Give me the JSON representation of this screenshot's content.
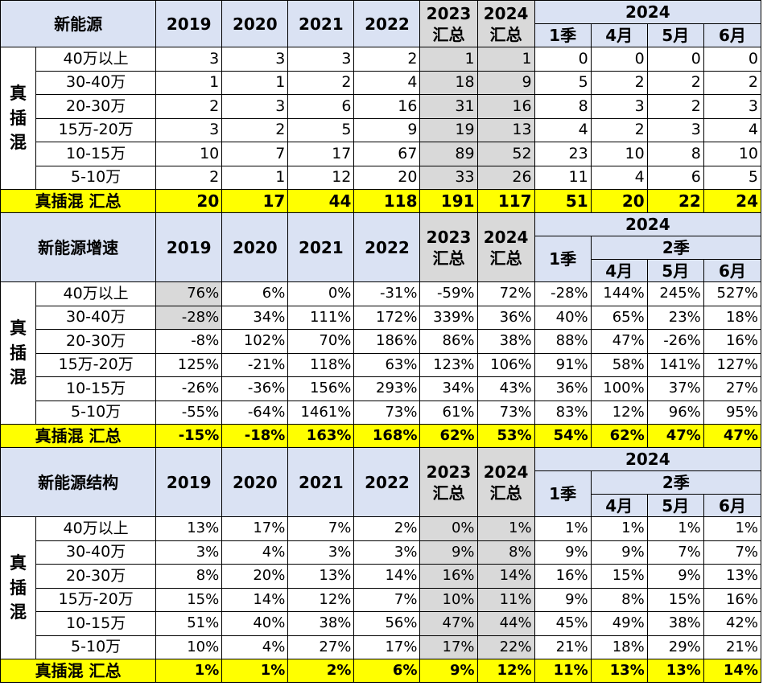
{
  "years": [
    "2019",
    "2020",
    "2021",
    "2022"
  ],
  "sum_years": [
    "2023",
    "2024"
  ],
  "sum_label": "汇总",
  "year2024": "2024",
  "q1": "1季",
  "q2": "2季",
  "months": [
    "4月",
    "5月",
    "6月"
  ],
  "side_chars": [
    "真",
    "插",
    "混"
  ],
  "row_labels": [
    "40万以上",
    "30-40万",
    "20-30万",
    "15万-20万",
    "10-15万",
    "5-10万"
  ],
  "total_label": "真插混 汇总",
  "sections": [
    {
      "title": "新能源",
      "rows": [
        [
          "3",
          "3",
          "3",
          "2",
          "1",
          "1",
          "0",
          "0",
          "0",
          "0"
        ],
        [
          "1",
          "1",
          "2",
          "4",
          "18",
          "9",
          "5",
          "2",
          "2",
          "2"
        ],
        [
          "2",
          "3",
          "6",
          "16",
          "31",
          "16",
          "8",
          "3",
          "2",
          "3"
        ],
        [
          "3",
          "2",
          "5",
          "9",
          "19",
          "13",
          "4",
          "2",
          "3",
          "4"
        ],
        [
          "10",
          "7",
          "17",
          "67",
          "89",
          "52",
          "23",
          "10",
          "8",
          "10"
        ],
        [
          "2",
          "1",
          "12",
          "20",
          "33",
          "26",
          "11",
          "4",
          "6",
          "5"
        ]
      ],
      "total": [
        "20",
        "17",
        "44",
        "118",
        "191",
        "117",
        "51",
        "20",
        "22",
        "24"
      ]
    },
    {
      "title": "新能源增速",
      "rows": [
        [
          "76%",
          "6%",
          "0%",
          "-31%",
          "-59%",
          "72%",
          "-28%",
          "144%",
          "245%",
          "527%"
        ],
        [
          "-28%",
          "34%",
          "111%",
          "172%",
          "339%",
          "36%",
          "40%",
          "65%",
          "23%",
          "18%"
        ],
        [
          "-8%",
          "102%",
          "70%",
          "186%",
          "86%",
          "38%",
          "88%",
          "47%",
          "-26%",
          "16%"
        ],
        [
          "125%",
          "-21%",
          "118%",
          "63%",
          "123%",
          "106%",
          "91%",
          "58%",
          "141%",
          "127%"
        ],
        [
          "-26%",
          "-36%",
          "156%",
          "293%",
          "34%",
          "43%",
          "36%",
          "100%",
          "37%",
          "27%"
        ],
        [
          "-55%",
          "-64%",
          "1461%",
          "73%",
          "61%",
          "73%",
          "83%",
          "12%",
          "96%",
          "95%"
        ]
      ],
      "total": [
        "-15%",
        "-18%",
        "163%",
        "168%",
        "62%",
        "53%",
        "54%",
        "62%",
        "47%",
        "47%"
      ]
    },
    {
      "title": "新能源结构",
      "rows": [
        [
          "13%",
          "17%",
          "7%",
          "2%",
          "0%",
          "1%",
          "1%",
          "1%",
          "1%",
          "1%"
        ],
        [
          "3%",
          "4%",
          "3%",
          "3%",
          "9%",
          "8%",
          "9%",
          "9%",
          "7%",
          "7%"
        ],
        [
          "8%",
          "20%",
          "13%",
          "14%",
          "16%",
          "14%",
          "16%",
          "15%",
          "9%",
          "13%"
        ],
        [
          "15%",
          "14%",
          "12%",
          "7%",
          "10%",
          "11%",
          "9%",
          "8%",
          "15%",
          "16%"
        ],
        [
          "51%",
          "40%",
          "38%",
          "56%",
          "47%",
          "44%",
          "45%",
          "49%",
          "38%",
          "42%"
        ],
        [
          "10%",
          "4%",
          "27%",
          "17%",
          "17%",
          "22%",
          "21%",
          "18%",
          "29%",
          "21%"
        ]
      ],
      "total": [
        "1%",
        "1%",
        "2%",
        "6%",
        "9%",
        "12%",
        "11%",
        "13%",
        "13%",
        "14%"
      ]
    }
  ]
}
